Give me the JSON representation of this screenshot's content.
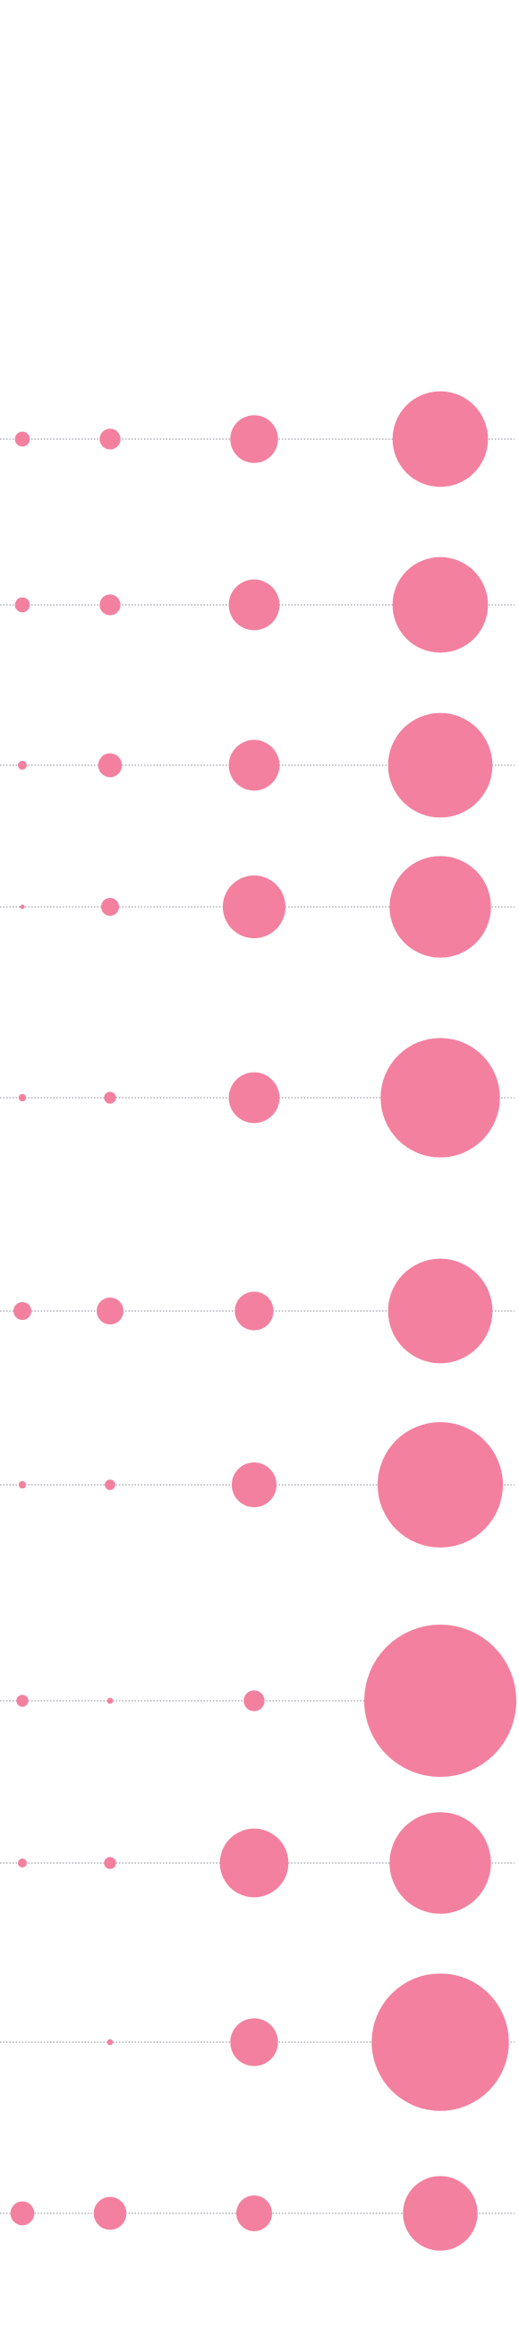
{
  "chart_data": {
    "type": "bubble",
    "color": "#f3809f",
    "series": [
      {
        "values": [
          5,
          5,
          3,
          1.5,
          2.5,
          6,
          2.5,
          4,
          3,
          null,
          8
        ]
      },
      {
        "values": [
          7,
          7,
          8,
          6,
          4,
          9,
          3.5,
          2,
          4,
          2,
          11
        ]
      },
      {
        "values": [
          16,
          17,
          17,
          21,
          17,
          13,
          15,
          7,
          23,
          16,
          12
        ]
      },
      {
        "values": [
          32,
          32,
          35,
          34,
          40,
          35,
          42,
          51,
          34,
          46,
          25
        ]
      }
    ]
  }
}
